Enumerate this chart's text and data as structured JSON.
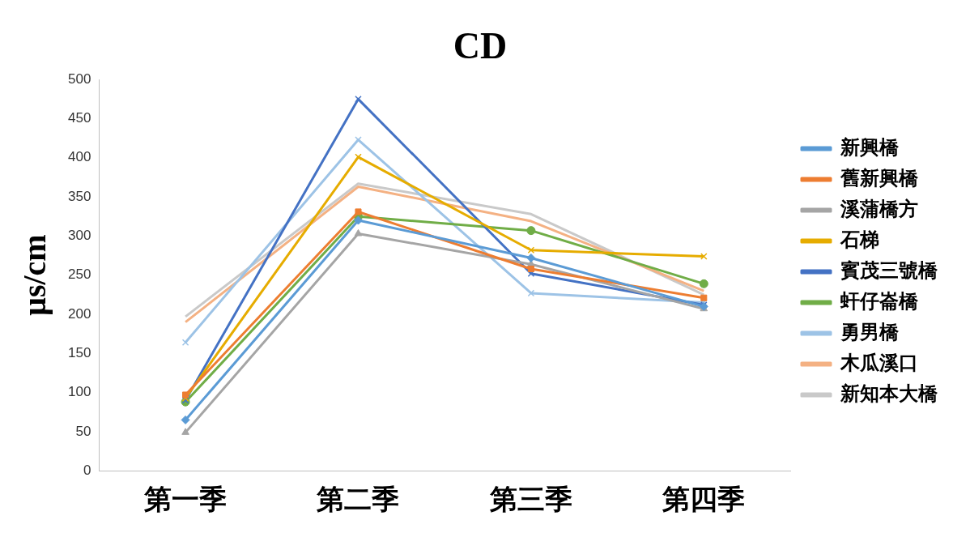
{
  "chart_data": {
    "type": "line",
    "title": "CD",
    "ylabel": "µs/cm",
    "categories": [
      "第一季",
      "第二季",
      "第三季",
      "第四季"
    ],
    "ylim": [
      0,
      500
    ],
    "yticks": [
      0,
      50,
      100,
      150,
      200,
      250,
      300,
      350,
      400,
      450,
      500
    ],
    "grid": false,
    "legend": "right",
    "series": [
      {
        "name": "新興橋",
        "color": "#5b9bd5",
        "marker": "diamond",
        "values": [
          65,
          320,
          272,
          210
        ]
      },
      {
        "name": "舊新興橋",
        "color": "#ed7d31",
        "marker": "square",
        "values": [
          97,
          331,
          258,
          221
        ]
      },
      {
        "name": "溪蒲橋方",
        "color": "#a5a5a5",
        "marker": "triangle",
        "values": [
          49,
          303,
          264,
          207
        ]
      },
      {
        "name": "石梯",
        "color": "#e6ac00",
        "marker": "cross",
        "values": [
          93,
          401,
          282,
          274
        ]
      },
      {
        "name": "賓茂三號橋",
        "color": "#4472c4",
        "marker": "cross",
        "values": [
          90,
          475,
          252,
          212
        ]
      },
      {
        "name": "虷仔崙橋",
        "color": "#70ad47",
        "marker": "circle",
        "values": [
          88,
          325,
          307,
          239
        ]
      },
      {
        "name": "勇男橋",
        "color": "#9dc3e6",
        "marker": "cross",
        "values": [
          164,
          423,
          227,
          215
        ]
      },
      {
        "name": "木瓜溪口",
        "color": "#f4b183",
        "marker": "none",
        "values": [
          190,
          363,
          319,
          230
        ]
      },
      {
        "name": "新知本大橋",
        "color": "#c9c9c9",
        "marker": "none",
        "values": [
          197,
          367,
          328,
          225
        ]
      }
    ]
  }
}
